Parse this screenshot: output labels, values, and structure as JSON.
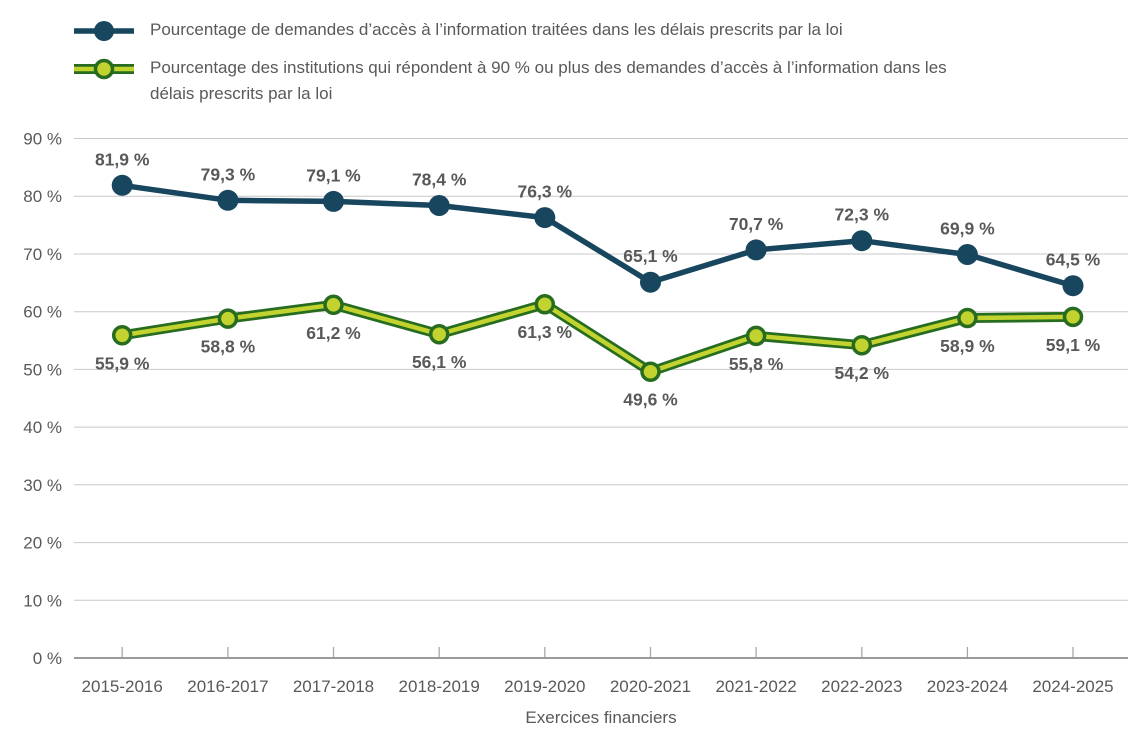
{
  "style": {
    "background": "#ffffff",
    "navy": "#17465e",
    "green_fill": "#c2d32f",
    "green_edge": "#276c1f",
    "label_color": "#595959",
    "grid_color": "#c8c8c8",
    "axis_color": "#8c8c8c",
    "tick_color": "#a9a9a9"
  },
  "chart_data": {
    "type": "line",
    "title": "",
    "xlabel": "Exercices financiers",
    "ylabel": "",
    "ylim": [
      0,
      90
    ],
    "grid": true,
    "legend_position": "top-left",
    "ytick_values": [
      0,
      10,
      20,
      30,
      40,
      50,
      60,
      70,
      80,
      90
    ],
    "ytick_labels": [
      "0 %",
      "10 %",
      "20 %",
      "30 %",
      "40 %",
      "50 %",
      "60 %",
      "70 %",
      "80 %",
      "90 %"
    ],
    "categories": [
      "2015-2016",
      "2016-2017",
      "2017-2018",
      "2018-2019",
      "2019-2020",
      "2020-2021",
      "2021-2022",
      "2022-2023",
      "2023-2024",
      "2024-2025"
    ],
    "series": [
      {
        "name": "Pourcentage de demandes d’accès à l’information traitées dans les délais prescrits par la loi",
        "color": "#17465e",
        "values": [
          81.9,
          79.3,
          79.1,
          78.4,
          76.3,
          65.1,
          70.7,
          72.3,
          69.9,
          64.5
        ],
        "labels": [
          "81,9 %",
          "79,3 %",
          "79,1 %",
          "78,4 %",
          "76,3 %",
          "65,1 %",
          "70,7 %",
          "72,3 %",
          "69,9 %",
          "64,5 %"
        ],
        "label_position": "above"
      },
      {
        "name": "Pourcentage des institutions qui répondent à 90 % ou plus des demandes d’accès à l’information dans les délais prescrits par la loi",
        "color": "#c2d32f",
        "edge_color": "#276c1f",
        "values": [
          55.9,
          58.8,
          61.2,
          56.1,
          61.3,
          49.6,
          55.8,
          54.2,
          58.9,
          59.1
        ],
        "labels": [
          "55,9 %",
          "58,8 %",
          "61,2 %",
          "56,1 %",
          "61,3 %",
          "49,6 %",
          "55,8 %",
          "54,2 %",
          "58,9 %",
          "59,1 %"
        ],
        "label_position": "below"
      }
    ]
  }
}
